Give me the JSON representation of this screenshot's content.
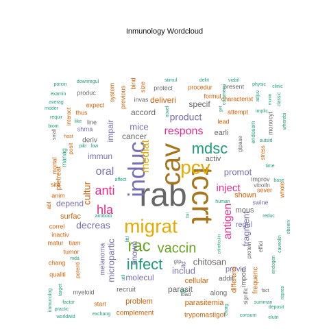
{
  "chart_data": {
    "type": "wordcloud",
    "title": "Inmunology  Wordcloud",
    "palette": [
      "#1B9E77",
      "#D95F02",
      "#7570B3",
      "#E7298A",
      "#66A61E",
      "#E6AB02",
      "#A6761D",
      "#666666"
    ],
    "words": [
      {
        "text": "rab",
        "size": 48,
        "color": "#666666"
      },
      {
        "text": "tccrt",
        "size": 44,
        "color": "#A6761D"
      },
      {
        "text": "cav",
        "size": 40,
        "color": "#A6761D"
      },
      {
        "text": "induc",
        "size": 34,
        "color": "#7570B3"
      },
      {
        "text": "migrat",
        "size": 28,
        "color": "#E6AB02"
      },
      {
        "text": "pcv",
        "size": 28,
        "color": "#E6AB02"
      },
      {
        "text": "mdsc",
        "size": 22,
        "color": "#1B9E77"
      },
      {
        "text": "rac",
        "size": 24,
        "color": "#66A61E"
      },
      {
        "text": "infect",
        "size": 22,
        "color": "#1B9E77"
      },
      {
        "text": "vaccin",
        "size": 20,
        "color": "#66A61E"
      },
      {
        "text": "anti",
        "size": 18,
        "color": "#E7298A"
      },
      {
        "text": "hla",
        "size": 18,
        "color": "#E7298A"
      },
      {
        "text": "respons",
        "size": 16,
        "color": "#E7298A"
      },
      {
        "text": "antigen",
        "size": 16,
        "color": "#E7298A"
      },
      {
        "text": "oral",
        "size": 16,
        "color": "#7570B3"
      },
      {
        "text": "mediat",
        "size": 16,
        "color": "#E6AB02"
      },
      {
        "text": "inject",
        "size": 15,
        "color": "#E7298A"
      },
      {
        "text": "product",
        "size": 14,
        "color": "#7570B3"
      },
      {
        "text": "decreas",
        "size": 14,
        "color": "#7570B3"
      },
      {
        "text": "cultur",
        "size": 14,
        "color": "#D95F02"
      },
      {
        "text": "micropartic",
        "size": 13,
        "color": "#7570B3"
      },
      {
        "text": "fragment",
        "size": 13,
        "color": "#7570B3"
      },
      {
        "text": "chitosan",
        "size": 13,
        "color": "#666666"
      },
      {
        "text": "mice",
        "size": 13,
        "color": "#7570B3"
      },
      {
        "text": "promot",
        "size": 13,
        "color": "#7570B3"
      },
      {
        "text": "includ",
        "size": 13,
        "color": "#7570B3"
      },
      {
        "text": "cancer",
        "size": 12,
        "color": "#666666"
      },
      {
        "text": "known",
        "size": 12,
        "color": "#7570B3"
      },
      {
        "text": "molecul",
        "size": 12,
        "color": "#7570B3"
      },
      {
        "text": "parasit",
        "size": 12,
        "color": "#666666"
      },
      {
        "text": "impair",
        "size": 12,
        "color": "#7570B3"
      },
      {
        "text": "immun",
        "size": 12,
        "color": "#7570B3"
      },
      {
        "text": "depend",
        "size": 12,
        "color": "#7570B3"
      },
      {
        "text": "surfac",
        "size": 11,
        "color": "#D95F02"
      },
      {
        "text": "specif",
        "size": 12,
        "color": "#666666"
      },
      {
        "text": "deliveri",
        "size": 12,
        "color": "#D95F02"
      },
      {
        "text": "accord",
        "size": 12,
        "color": "#666666"
      },
      {
        "text": "activ",
        "size": 11,
        "color": "#666666"
      },
      {
        "text": "earli",
        "size": 11,
        "color": "#666666"
      },
      {
        "text": "shown",
        "size": 11,
        "color": "#D95F02"
      },
      {
        "text": "regul",
        "size": 11,
        "color": "#7570B3"
      },
      {
        "text": "mous",
        "size": 11,
        "color": "#666666"
      },
      {
        "text": "provid",
        "size": 11,
        "color": "#7570B3"
      },
      {
        "text": "cellular",
        "size": 11,
        "color": "#D95F02"
      },
      {
        "text": "problem",
        "size": 11,
        "color": "#D95F02"
      },
      {
        "text": "parasitemia",
        "size": 11,
        "color": "#D95F02"
      },
      {
        "text": "melanoma",
        "size": 10,
        "color": "#7570B3"
      },
      {
        "text": "pretreat",
        "size": 10,
        "color": "#D95F02"
      },
      {
        "text": "deriv",
        "size": 10,
        "color": "#666666"
      },
      {
        "text": "complement",
        "size": 10,
        "color": "#D95F02"
      },
      {
        "text": "trypomastigot",
        "size": 10,
        "color": "#D95F02"
      },
      {
        "text": "recruit",
        "size": 10,
        "color": "#666666"
      },
      {
        "text": "along",
        "size": 10,
        "color": "#666666"
      },
      {
        "text": "frequenc",
        "size": 10,
        "color": "#D95F02"
      },
      {
        "text": "import",
        "size": 10,
        "color": "#666666"
      },
      {
        "text": "differenti",
        "size": 10,
        "color": "#D95F02"
      },
      {
        "text": "addit",
        "size": 10,
        "color": "#666666"
      },
      {
        "text": "ltd",
        "size": 9,
        "color": "#7570B3"
      },
      {
        "text": "myeloid",
        "size": 9,
        "color": "#666666"
      },
      {
        "text": "start",
        "size": 9,
        "color": "#D95F02"
      },
      {
        "text": "shrna",
        "size": 9,
        "color": "#7570B3"
      },
      {
        "text": "line",
        "size": 9,
        "color": "#666666"
      },
      {
        "text": "thus",
        "size": 9,
        "color": "#D95F02"
      },
      {
        "text": "expect",
        "size": 9,
        "color": "#D95F02"
      },
      {
        "text": "produc",
        "size": 9,
        "color": "#666666"
      },
      {
        "text": "system",
        "size": 9,
        "color": "#D95F02"
      },
      {
        "text": "previous",
        "size": 9,
        "color": "#D95F02"
      },
      {
        "text": "invas",
        "size": 9,
        "color": "#666666"
      },
      {
        "text": "bind",
        "size": 9,
        "color": "#D95F02"
      },
      {
        "text": "size",
        "size": 9,
        "color": "#D95F02"
      },
      {
        "text": "protect",
        "size": 9,
        "color": "#666666"
      },
      {
        "text": "procedur",
        "size": 9,
        "color": "#D95F02"
      },
      {
        "text": "present",
        "size": 9,
        "color": "#666666"
      },
      {
        "text": "formul",
        "size": 9,
        "color": "#D95F02"
      },
      {
        "text": "characterist",
        "size": 9,
        "color": "#D95F02"
      },
      {
        "text": "lead",
        "size": 9,
        "color": "#D95F02"
      },
      {
        "text": "attempt",
        "size": 9,
        "color": "#D95F02"
      },
      {
        "text": "gtpase",
        "size": 8,
        "color": "#666666"
      },
      {
        "text": "endosom",
        "size": 8,
        "color": "#1B9E77"
      },
      {
        "text": "stress",
        "size": 8,
        "color": "#D95F02"
      },
      {
        "text": "monocyt",
        "size": 9,
        "color": "#666666"
      },
      {
        "text": "improv",
        "size": 9,
        "color": "#666666"
      },
      {
        "text": "sever",
        "size": 9,
        "color": "#D95F02"
      },
      {
        "text": "swine",
        "size": 9,
        "color": "#7570B3"
      },
      {
        "text": "whole",
        "size": 9,
        "color": "#D95F02"
      },
      {
        "text": "vitroifn",
        "size": 8,
        "color": "#666666"
      },
      {
        "text": "protein",
        "size": 8,
        "color": "#666666"
      },
      {
        "text": "effici",
        "size": 8,
        "color": "#666666"
      },
      {
        "text": "tumor",
        "size": 9,
        "color": "#D95F02"
      },
      {
        "text": "tiam",
        "size": 9,
        "color": "#D95F02"
      },
      {
        "text": "matur",
        "size": 9,
        "color": "#D95F02"
      },
      {
        "text": "correl",
        "size": 9,
        "color": "#D95F02"
      },
      {
        "text": "inactiv",
        "size": 9,
        "color": "#D95F02"
      },
      {
        "text": "chang",
        "size": 9,
        "color": "#D95F02"
      },
      {
        "text": "qualiti",
        "size": 9,
        "color": "#D95F02"
      },
      {
        "text": "potenti",
        "size": 8,
        "color": "#D95F02"
      },
      {
        "text": "mortal",
        "size": 9,
        "color": "#D95F02"
      },
      {
        "text": "site",
        "size": 9,
        "color": "#D95F02"
      },
      {
        "text": "manag",
        "size": 9,
        "color": "#1B9E77"
      },
      {
        "text": "anim",
        "size": 9,
        "color": "#D95F02"
      },
      {
        "text": "abl",
        "size": 8,
        "color": "#D95F02"
      },
      {
        "text": "posit",
        "size": 8,
        "color": "#D95F02"
      },
      {
        "text": "interact",
        "size": 8,
        "color": "#D95F02"
      },
      {
        "text": "host",
        "size": 7,
        "color": "#D95F02"
      },
      {
        "text": "small",
        "size": 7,
        "color": "#666666"
      },
      {
        "text": "gtp",
        "size": 8,
        "color": "#666666"
      },
      {
        "text": "load",
        "size": 8,
        "color": "#666666"
      },
      {
        "text": "signific",
        "size": 8,
        "color": "#666666"
      },
      {
        "text": "fact",
        "size": 7,
        "color": "#666666"
      },
      {
        "text": "factor",
        "size": 7,
        "color": "#1B9E77"
      },
      {
        "text": "practic",
        "size": 7,
        "color": "#1B9E77"
      },
      {
        "text": "worldwid",
        "size": 7,
        "color": "#1B9E77"
      },
      {
        "text": "exchang",
        "size": 7,
        "color": "#1B9E77"
      },
      {
        "text": "target",
        "size": 7,
        "color": "#1B9E77"
      },
      {
        "text": "immunolog",
        "size": 7,
        "color": "#1B9E77"
      },
      {
        "text": "consum",
        "size": 7,
        "color": "#1B9E77"
      },
      {
        "text": "elutri",
        "size": 7,
        "color": "#1B9E77"
      },
      {
        "text": "deposit",
        "size": 7,
        "color": "#1B9E77"
      },
      {
        "text": "summari",
        "size": 7,
        "color": "#1B9E77"
      },
      {
        "text": "repres",
        "size": 7,
        "color": "#1B9E77"
      },
      {
        "text": "endogen",
        "size": 7,
        "color": "#1B9E77"
      },
      {
        "text": "caveolin",
        "size": 7,
        "color": "#1B9E77"
      },
      {
        "text": "observ",
        "size": 7,
        "color": "#1B9E77"
      },
      {
        "text": "calreticulin",
        "size": 6,
        "color": "#1B9E77"
      },
      {
        "text": "reduc",
        "size": 7,
        "color": "#1B9E77"
      },
      {
        "text": "base",
        "size": 7,
        "color": "#1B9E77"
      },
      {
        "text": "human",
        "size": 7,
        "color": "#1B9E77"
      },
      {
        "text": "fail",
        "size": 6,
        "color": "#1B9E77"
      },
      {
        "text": "time",
        "size": 7,
        "color": "#1B9E77"
      },
      {
        "text": "outsid",
        "size": 7,
        "color": "#1B9E77"
      },
      {
        "text": "implic",
        "size": 7,
        "color": "#1B9E77"
      },
      {
        "text": "wherebi",
        "size": 7,
        "color": "#1B9E77"
      },
      {
        "text": "classic",
        "size": 7,
        "color": "#1B9E77"
      },
      {
        "text": "adjuv",
        "size": 7,
        "color": "#1B9E77"
      },
      {
        "text": "munin",
        "size": 6,
        "color": "#1B9E77"
      },
      {
        "text": "physic",
        "size": 7,
        "color": "#1B9E77"
      },
      {
        "text": "clinic",
        "size": 7,
        "color": "#1B9E77"
      },
      {
        "text": "viabil",
        "size": 7,
        "color": "#1B9E77"
      },
      {
        "text": "commerci",
        "size": 7,
        "color": "#1B9E77"
      },
      {
        "text": "deliv",
        "size": 7,
        "color": "#1B9E77"
      },
      {
        "text": "stimul",
        "size": 7,
        "color": "#1B9E77"
      },
      {
        "text": "downregul",
        "size": 7,
        "color": "#1B9E77"
      },
      {
        "text": "porcin",
        "size": 7,
        "color": "#1B9E77"
      },
      {
        "text": "examin",
        "size": 7,
        "color": "#1B9E77"
      },
      {
        "text": "averag",
        "size": 7,
        "color": "#1B9E77"
      },
      {
        "text": "moder",
        "size": 7,
        "color": "#1B9E77"
      },
      {
        "text": "requir",
        "size": 7,
        "color": "#1B9E77"
      },
      {
        "text": "biom",
        "size": 7,
        "color": "#1B9E77"
      },
      {
        "text": "like",
        "size": 7,
        "color": "#1B9E77"
      },
      {
        "text": "affect",
        "size": 7,
        "color": "#1B9E77"
      },
      {
        "text": "novel",
        "size": 7,
        "color": "#1B9E77"
      },
      {
        "text": "get",
        "size": 6,
        "color": "#1B9E77"
      },
      {
        "text": "pikr",
        "size": 7,
        "color": "#1B9E77"
      },
      {
        "text": "low",
        "size": 7,
        "color": "#1B9E77"
      },
      {
        "text": "antibodi",
        "size": 7,
        "color": "#1B9E77"
      },
      {
        "text": "littl",
        "size": 7,
        "color": "#1B9E77"
      },
      {
        "text": "util",
        "size": 7,
        "color": "#1B9E77"
      },
      {
        "text": "mda",
        "size": 7,
        "color": "#1B9E77"
      },
      {
        "text": "vlp",
        "size": 7,
        "color": "#1B9E77"
      },
      {
        "text": "charg",
        "size": 7,
        "color": "#1B9E77"
      }
    ]
  }
}
